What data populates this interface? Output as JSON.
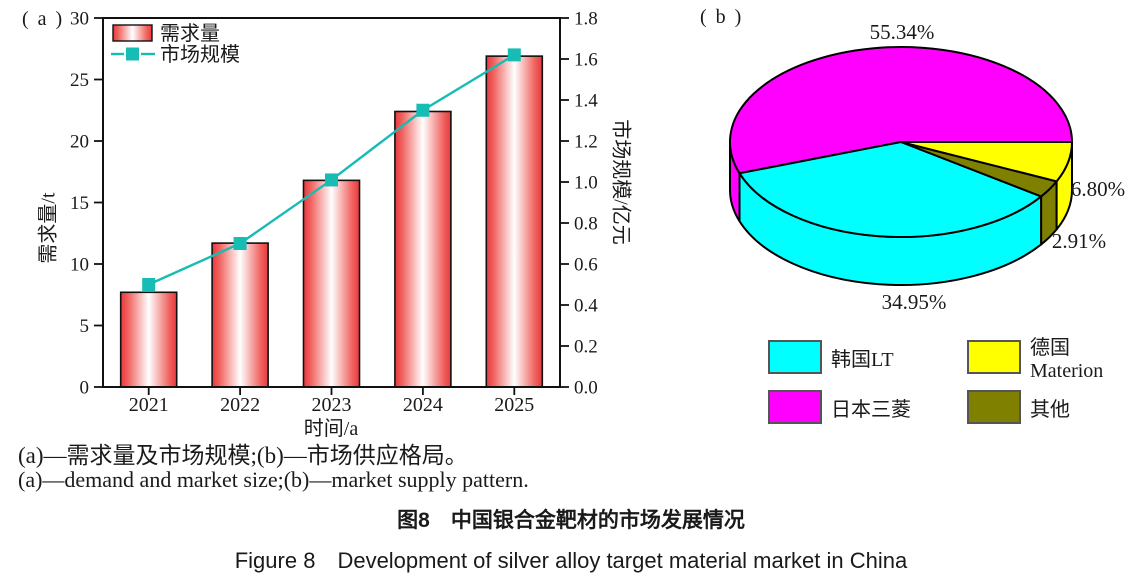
{
  "figure": {
    "panel_a_label": "( a )",
    "panel_b_label": "( b )",
    "caption_zh": "(a)—需求量及市场规模;(b)—市场供应格局。",
    "caption_en": "(a)—demand and market size;(b)—market supply pattern.",
    "title_zh": "图8　中国银合金靶材的市场发展情况",
    "title_en": "Figure 8　Development of silver alloy target material market in China"
  },
  "colors": {
    "bar_red": "#e8393d",
    "bar_red_soft": "#f0625f",
    "line_teal": "#17bcb4",
    "axis_black": "#1a1a1a",
    "pie_magenta": "#ff00ff",
    "pie_cyan": "#00ffff",
    "pie_yellow": "#ffff00",
    "pie_olive": "#7f7f00"
  },
  "chart_data": [
    {
      "type": "bar+line",
      "categories": [
        "2021",
        "2022",
        "2023",
        "2024",
        "2025"
      ],
      "series": [
        {
          "name": "需求量",
          "type": "bar",
          "axis": "left",
          "color": "#e8393d",
          "values": [
            7.7,
            11.7,
            16.8,
            22.4,
            26.9
          ]
        },
        {
          "name": "市场规模",
          "type": "line",
          "axis": "right",
          "color": "#17bcb4",
          "values": [
            0.5,
            0.7,
            1.01,
            1.35,
            1.62
          ]
        }
      ],
      "xlabel": "时间/a",
      "ylabel_left": "需求量/t",
      "ylabel_right": "市场规模/亿元",
      "y_left": {
        "min": 0,
        "max": 30,
        "step": 5,
        "decimals": 0
      },
      "y_right": {
        "min": 0.0,
        "max": 1.8,
        "step": 0.2,
        "decimals": 1
      },
      "grid": false,
      "legend_position": "top-left"
    },
    {
      "type": "pie",
      "style": "3d",
      "start_angle_deg": 0,
      "direction": "ccw",
      "slices": [
        {
          "label": "日本三菱",
          "value": 55.34,
          "display": "55.34%",
          "color": "#ff00ff"
        },
        {
          "label": "韩国LT",
          "value": 34.95,
          "display": "34.95%",
          "color": "#00ffff"
        },
        {
          "label": "其他",
          "value": 2.91,
          "display": "2.91%",
          "color": "#7f7f00"
        },
        {
          "label": "德国Materion",
          "value": 6.8,
          "display": "6.80%",
          "color": "#ffff00"
        }
      ],
      "legend": [
        {
          "label": "韩国LT",
          "color": "#00ffff"
        },
        {
          "label": "德国Materion",
          "color": "#ffff00"
        },
        {
          "label": "日本三菱",
          "color": "#ff00ff"
        },
        {
          "label": "其他",
          "color": "#7f7f00"
        }
      ],
      "legend_position": "bottom"
    }
  ]
}
